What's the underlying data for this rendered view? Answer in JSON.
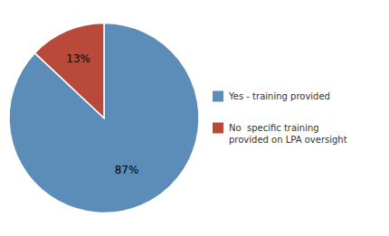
{
  "chart_data": {
    "type": "pie",
    "categories": [
      "Yes - training provided",
      "No  specific training\nprovided on LPA oversight"
    ],
    "values": [
      87,
      13
    ],
    "value_labels": [
      "87%",
      "13%"
    ],
    "colors": [
      "#5b8db8",
      "#b94a3a"
    ],
    "data_labels": true,
    "legend": "right"
  }
}
